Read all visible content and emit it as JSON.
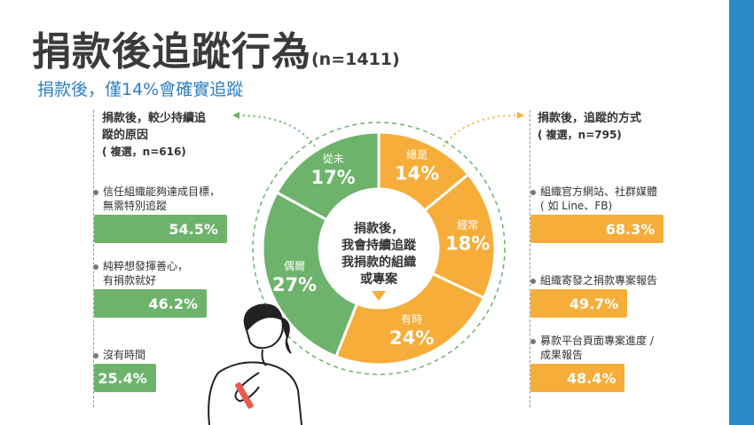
{
  "header": {
    "title": "捐款後追蹤行為",
    "title_n": "(n=1411)",
    "subtitle": "捐款後，僅14%會確實追蹤"
  },
  "colors": {
    "green": "#6db36b",
    "orange": "#f6ad3a",
    "blue": "#2c7fc0",
    "stripe": "#2a8ac8"
  },
  "left_panel": {
    "heading_line1": "捐款後，較少持續追",
    "heading_line2": "蹤的原因",
    "heading_line3": "( 複選，n=616)",
    "items": [
      {
        "label_line1": "信任組織能夠達成目標，",
        "label_line2": "無需特別追蹤",
        "value_label": "54.5%"
      },
      {
        "label_line1": "純粹想發揮善心，",
        "label_line2": "有捐款就好",
        "value_label": "46.2%"
      },
      {
        "label_line1": "沒有時間",
        "label_line2": "",
        "value_label": "25.4%"
      }
    ]
  },
  "right_panel": {
    "heading_line1": "捐款後，追蹤的方式",
    "heading_line2": "( 複選，n=795)",
    "items": [
      {
        "label_line1": "組織官方網站、社群媒體",
        "label_line2": "( 如 Line、FB)",
        "value_label": "68.3%"
      },
      {
        "label_line1": "組織寄發之捐款專案報告",
        "label_line2": "",
        "value_label": "49.7%"
      },
      {
        "label_line1": "募款平台頁面專案進度 /",
        "label_line2": "成果報告",
        "value_label": "48.4%"
      }
    ]
  },
  "donut": {
    "center_line1": "捐款後，",
    "center_line2": "我會持續追蹤",
    "center_line3": "我捐款的組織",
    "center_line4": "或專案"
  },
  "chart_data": [
    {
      "type": "pie",
      "title": "",
      "categories": [
        "總是",
        "經常",
        "有時",
        "偶爾",
        "從未"
      ],
      "values": [
        14,
        18,
        24,
        27,
        17
      ],
      "value_labels": [
        "14%",
        "18%",
        "24%",
        "27%",
        "17%"
      ],
      "colors": [
        "#f6ad3a",
        "#f6ad3a",
        "#f6ad3a",
        "#6db36b",
        "#6db36b"
      ],
      "style": "donut"
    },
    {
      "type": "bar",
      "title": "捐款後，較少持續追蹤的原因",
      "categories": [
        "信任組織能夠達成目標，無需特別追蹤",
        "純粹想發揮善心，有捐款就好",
        "沒有時間"
      ],
      "values": [
        54.5,
        46.2,
        25.4
      ],
      "unit": "%"
    },
    {
      "type": "bar",
      "title": "捐款後，追蹤的方式",
      "categories": [
        "組織官方網站、社群媒體 ( 如 Line、FB)",
        "組織寄發之捐款專案報告",
        "募款平台頁面專案進度 / 成果報告"
      ],
      "values": [
        68.3,
        49.7,
        48.4
      ],
      "unit": "%"
    }
  ]
}
